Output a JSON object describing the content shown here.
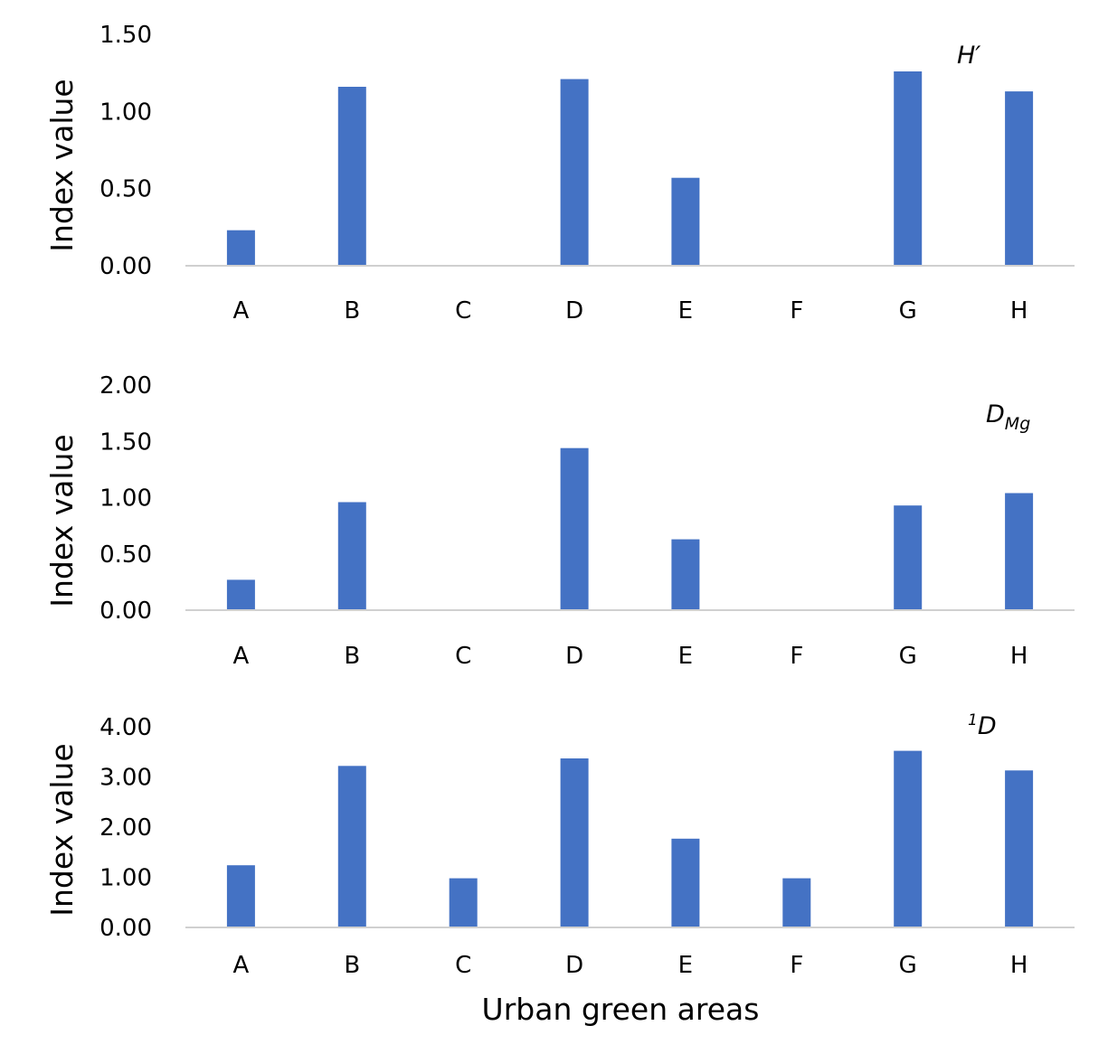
{
  "colors": {
    "bar": "#4472c4",
    "axis": "#d0d0d0"
  },
  "chart_data": [
    {
      "type": "bar",
      "annotation": {
        "main": "H′",
        "sub": "",
        "sup": ""
      },
      "ylabel": "Index value",
      "xlabel": "",
      "categories": [
        "A",
        "B",
        "C",
        "D",
        "E",
        "F",
        "G",
        "H"
      ],
      "values": [
        0.23,
        1.16,
        0,
        1.21,
        0.57,
        0,
        1.26,
        1.13
      ],
      "ylim": [
        0,
        1.5
      ],
      "yticks": [
        "0.00",
        "0.50",
        "1.00",
        "1.50"
      ]
    },
    {
      "type": "bar",
      "annotation": {
        "main": "D",
        "sub": "Mg",
        "sup": ""
      },
      "ylabel": "Index value",
      "xlabel": "",
      "categories": [
        "A",
        "B",
        "C",
        "D",
        "E",
        "F",
        "G",
        "H"
      ],
      "values": [
        0.27,
        0.96,
        0,
        1.44,
        0.63,
        0,
        0.93,
        1.04
      ],
      "ylim": [
        0,
        2.0
      ],
      "yticks": [
        "0.00",
        "0.50",
        "1.00",
        "1.50",
        "2.00"
      ]
    },
    {
      "type": "bar",
      "annotation": {
        "main": "D",
        "sub": "",
        "sup": "1"
      },
      "ylabel": "Index value",
      "xlabel": "Urban green areas",
      "categories": [
        "A",
        "B",
        "C",
        "D",
        "E",
        "F",
        "G",
        "H"
      ],
      "values": [
        1.24,
        3.22,
        0.98,
        3.37,
        1.77,
        0.98,
        3.52,
        3.13
      ],
      "ylim": [
        0,
        4.0
      ],
      "yticks": [
        "0.00",
        "1.00",
        "2.00",
        "3.00",
        "4.00"
      ]
    }
  ]
}
